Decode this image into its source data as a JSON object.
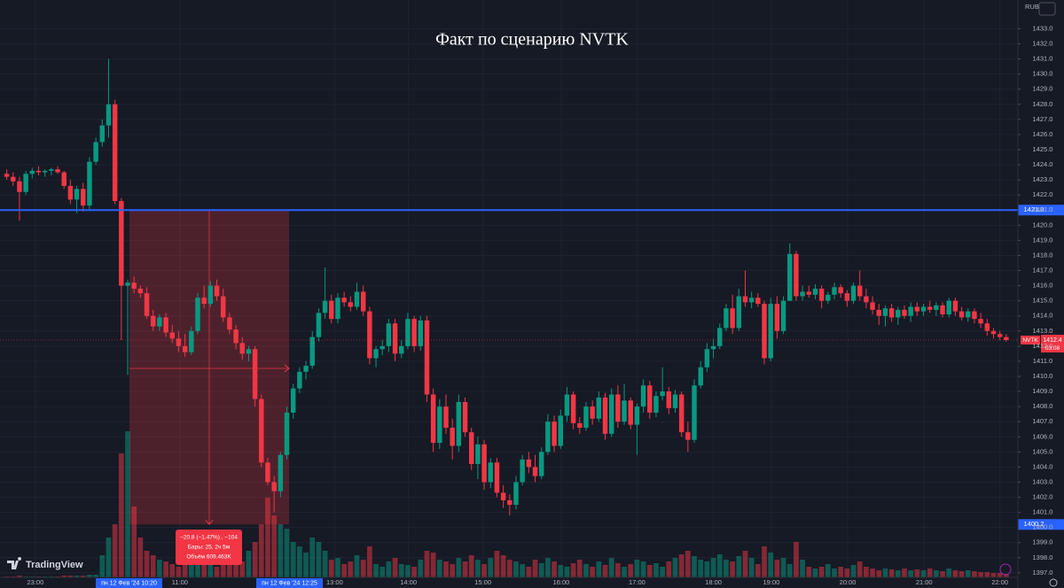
{
  "chart_data": {
    "type": "candlestick",
    "title": "Факт по сценарию NVTK",
    "currency": "RUB",
    "watermark": "TradingView",
    "colors": {
      "up": "#089981",
      "down": "#f23645",
      "line": "#2962ff"
    },
    "grid": true,
    "ylim": [
      1396.7,
      1434.9
    ],
    "yticks": [
      {
        "value": 1397,
        "label": "1397.0"
      },
      {
        "value": 1398,
        "label": "1398.0"
      },
      {
        "value": 1399,
        "label": "1399.0"
      },
      {
        "value": 1400,
        "label": "1400.0"
      },
      {
        "value": 1401,
        "label": "1401.0"
      },
      {
        "value": 1402,
        "label": "1402.0"
      },
      {
        "value": 1403,
        "label": "1403.0"
      },
      {
        "value": 1404,
        "label": "1404.0"
      },
      {
        "value": 1405,
        "label": "1405.0"
      },
      {
        "value": 1406,
        "label": "1406.0"
      },
      {
        "value": 1407,
        "label": "1407.0"
      },
      {
        "value": 1408,
        "label": "1408.0"
      },
      {
        "value": 1409,
        "label": "1409.0"
      },
      {
        "value": 1410,
        "label": "1410.0"
      },
      {
        "value": 1411,
        "label": "1411.0"
      },
      {
        "value": 1412,
        "label": "1412.0"
      },
      {
        "value": 1413,
        "label": "1413.0"
      },
      {
        "value": 1414,
        "label": "1414.0"
      },
      {
        "value": 1415,
        "label": "1415.0"
      },
      {
        "value": 1416,
        "label": "1416.0"
      },
      {
        "value": 1417,
        "label": "1417.0"
      },
      {
        "value": 1418,
        "label": "1418.0"
      },
      {
        "value": 1419,
        "label": "1419.0"
      },
      {
        "value": 1420,
        "label": "1420.0"
      },
      {
        "value": 1421,
        "label": "1421.0"
      },
      {
        "value": 1422,
        "label": "1422.0"
      },
      {
        "value": 1423,
        "label": "1423.0"
      },
      {
        "value": 1424,
        "label": "1424.0"
      },
      {
        "value": 1425,
        "label": "1425.0"
      },
      {
        "value": 1426,
        "label": "1426.0"
      },
      {
        "value": 1427,
        "label": "1427.0"
      },
      {
        "value": 1428,
        "label": "1428.0"
      },
      {
        "value": 1429,
        "label": "1429.0"
      },
      {
        "value": 1430,
        "label": "1430.0"
      },
      {
        "value": 1431,
        "label": "1431.0"
      },
      {
        "value": 1432,
        "label": "1432.0"
      },
      {
        "value": 1433,
        "label": "1433.0"
      }
    ],
    "xticks": [
      {
        "value": 4.5,
        "label": "23:00"
      },
      {
        "value": 27.2,
        "label": "11:00"
      },
      {
        "value": 51.5,
        "label": "13:00"
      },
      {
        "value": 63.1,
        "label": "14:00"
      },
      {
        "value": 74.8,
        "label": "15:00"
      },
      {
        "value": 87.1,
        "label": "16:00"
      },
      {
        "value": 99,
        "label": "17:00"
      },
      {
        "value": 111,
        "label": "18:00"
      },
      {
        "value": 120.1,
        "label": "19:00"
      },
      {
        "value": 132.1,
        "label": "20:00"
      },
      {
        "value": 144.1,
        "label": "21:00"
      },
      {
        "value": 156,
        "label": "22:00"
      }
    ],
    "ohlc": [
      [
        1423.4,
        1423.7,
        1423.0,
        1423.2
      ],
      [
        1423.2,
        1423.5,
        1422.6,
        1422.9
      ],
      [
        1422.9,
        1423.2,
        1420.3,
        1422.2
      ],
      [
        1422.2,
        1423.6,
        1422.0,
        1423.4
      ],
      [
        1423.4,
        1423.8,
        1423.1,
        1423.6
      ],
      [
        1423.6,
        1423.9,
        1423.3,
        1423.5
      ],
      [
        1423.5,
        1423.7,
        1423.2,
        1423.6
      ],
      [
        1423.6,
        1423.8,
        1423.3,
        1423.7
      ],
      [
        1423.7,
        1423.9,
        1423.4,
        1423.5
      ],
      [
        1423.5,
        1423.6,
        1422.4,
        1422.6
      ],
      [
        1422.6,
        1423.0,
        1421.4,
        1421.7
      ],
      [
        1421.7,
        1422.6,
        1420.8,
        1422.4
      ],
      [
        1422.4,
        1422.8,
        1420.9,
        1421.3
      ],
      [
        1421.3,
        1424.5,
        1421.0,
        1424.2
      ],
      [
        1424.2,
        1425.8,
        1424.0,
        1425.5
      ],
      [
        1425.5,
        1427.0,
        1425.2,
        1426.6
      ],
      [
        1426.6,
        1431.0,
        1425.8,
        1428.0
      ],
      [
        1428.0,
        1428.3,
        1421.4,
        1421.6
      ],
      [
        1421.6,
        1421.8,
        1412.4,
        1416.0
      ],
      [
        1416.0,
        1416.4,
        1410.1,
        1416.2
      ],
      [
        1416.2,
        1416.6,
        1415.5,
        1415.8
      ],
      [
        1415.8,
        1416.0,
        1415.2,
        1415.5
      ],
      [
        1415.5,
        1415.9,
        1413.8,
        1414.0
      ],
      [
        1414.0,
        1414.4,
        1413.0,
        1413.3
      ],
      [
        1413.3,
        1414.1,
        1413.0,
        1413.9
      ],
      [
        1413.9,
        1414.2,
        1412.6,
        1412.9
      ],
      [
        1412.9,
        1413.4,
        1412.2,
        1412.5
      ],
      [
        1412.5,
        1413.0,
        1411.6,
        1412.0
      ],
      [
        1412.0,
        1412.8,
        1411.3,
        1411.6
      ],
      [
        1411.6,
        1413.3,
        1411.4,
        1413.0
      ],
      [
        1413.0,
        1415.5,
        1412.8,
        1415.2
      ],
      [
        1415.2,
        1416.0,
        1414.5,
        1414.8
      ],
      [
        1414.8,
        1416.3,
        1414.6,
        1416.0
      ],
      [
        1416.0,
        1416.4,
        1415.0,
        1415.3
      ],
      [
        1415.3,
        1415.8,
        1413.6,
        1413.9
      ],
      [
        1413.9,
        1414.2,
        1412.8,
        1413.1
      ],
      [
        1413.1,
        1413.4,
        1411.8,
        1412.2
      ],
      [
        1412.2,
        1412.6,
        1411.1,
        1411.5
      ],
      [
        1411.5,
        1412.0,
        1411.0,
        1411.8
      ],
      [
        1411.8,
        1412.0,
        1408.0,
        1408.5
      ],
      [
        1408.5,
        1408.8,
        1404.0,
        1404.3
      ],
      [
        1404.3,
        1404.6,
        1402.8,
        1403.0
      ],
      [
        1403.0,
        1403.4,
        1401.0,
        1402.4
      ],
      [
        1402.4,
        1405.0,
        1402.0,
        1404.8
      ],
      [
        1404.8,
        1408.0,
        1404.5,
        1407.6
      ],
      [
        1407.6,
        1409.5,
        1407.2,
        1409.2
      ],
      [
        1409.2,
        1410.6,
        1408.9,
        1410.3
      ],
      [
        1410.3,
        1411.0,
        1409.8,
        1410.7
      ],
      [
        1410.7,
        1413.0,
        1410.5,
        1412.6
      ],
      [
        1412.6,
        1414.5,
        1412.3,
        1414.2
      ],
      [
        1414.2,
        1417.2,
        1413.8,
        1415.0
      ],
      [
        1415.0,
        1415.4,
        1413.5,
        1413.8
      ],
      [
        1413.8,
        1415.5,
        1413.5,
        1415.2
      ],
      [
        1415.2,
        1415.6,
        1414.6,
        1414.9
      ],
      [
        1414.9,
        1415.3,
        1414.3,
        1414.6
      ],
      [
        1414.6,
        1416.2,
        1414.4,
        1415.6
      ],
      [
        1415.6,
        1416.0,
        1414.0,
        1414.3
      ],
      [
        1414.3,
        1414.6,
        1410.8,
        1411.2
      ],
      [
        1411.2,
        1412.0,
        1410.6,
        1411.8
      ],
      [
        1411.8,
        1412.4,
        1411.4,
        1412.0
      ],
      [
        1412.0,
        1413.8,
        1411.6,
        1413.5
      ],
      [
        1413.5,
        1413.8,
        1411.0,
        1411.5
      ],
      [
        1411.5,
        1412.4,
        1411.2,
        1412.0
      ],
      [
        1412.0,
        1414.2,
        1411.8,
        1413.8
      ],
      [
        1413.8,
        1414.0,
        1411.6,
        1412.0
      ],
      [
        1412.0,
        1414.0,
        1411.7,
        1413.7
      ],
      [
        1413.7,
        1414.0,
        1408.3,
        1408.8
      ],
      [
        1408.8,
        1409.2,
        1405.0,
        1405.6
      ],
      [
        1405.6,
        1408.5,
        1405.2,
        1408.0
      ],
      [
        1408.0,
        1408.8,
        1406.2,
        1406.6
      ],
      [
        1406.6,
        1407.2,
        1404.5,
        1405.4
      ],
      [
        1405.4,
        1408.8,
        1405.0,
        1408.3
      ],
      [
        1408.3,
        1408.6,
        1406.0,
        1406.3
      ],
      [
        1406.3,
        1406.6,
        1403.8,
        1404.2
      ],
      [
        1404.2,
        1406.0,
        1403.2,
        1405.5
      ],
      [
        1405.5,
        1405.8,
        1402.5,
        1403.0
      ],
      [
        1403.0,
        1404.6,
        1402.6,
        1404.3
      ],
      [
        1404.3,
        1404.6,
        1402.0,
        1402.3
      ],
      [
        1402.3,
        1402.8,
        1401.3,
        1401.8
      ],
      [
        1401.8,
        1402.2,
        1400.8,
        1401.5
      ],
      [
        1401.5,
        1403.4,
        1401.2,
        1403.0
      ],
      [
        1403.0,
        1404.8,
        1402.8,
        1404.5
      ],
      [
        1404.5,
        1405.0,
        1403.6,
        1404.0
      ],
      [
        1404.0,
        1404.8,
        1403.0,
        1403.4
      ],
      [
        1403.4,
        1405.3,
        1403.2,
        1405.0
      ],
      [
        1405.0,
        1407.5,
        1404.8,
        1407.0
      ],
      [
        1407.0,
        1407.4,
        1405.0,
        1405.4
      ],
      [
        1405.4,
        1407.8,
        1405.2,
        1407.4
      ],
      [
        1407.4,
        1409.3,
        1407.0,
        1408.8
      ],
      [
        1408.8,
        1409.0,
        1406.5,
        1406.9
      ],
      [
        1406.9,
        1407.3,
        1406.2,
        1406.6
      ],
      [
        1406.6,
        1408.3,
        1406.4,
        1408.0
      ],
      [
        1408.0,
        1408.4,
        1406.8,
        1407.2
      ],
      [
        1407.2,
        1409.0,
        1407.0,
        1408.6
      ],
      [
        1408.6,
        1408.9,
        1405.8,
        1406.2
      ],
      [
        1406.2,
        1409.2,
        1406.0,
        1408.8
      ],
      [
        1408.8,
        1409.4,
        1406.6,
        1407.0
      ],
      [
        1407.0,
        1409.5,
        1406.8,
        1408.4
      ],
      [
        1408.4,
        1408.6,
        1406.5,
        1406.8
      ],
      [
        1406.8,
        1408.2,
        1404.8,
        1408.0
      ],
      [
        1408.0,
        1409.8,
        1407.6,
        1409.4
      ],
      [
        1409.4,
        1409.7,
        1407.2,
        1407.6
      ],
      [
        1407.6,
        1409.0,
        1407.3,
        1408.7
      ],
      [
        1408.7,
        1410.6,
        1408.4,
        1409.0
      ],
      [
        1409.0,
        1409.3,
        1407.5,
        1407.9
      ],
      [
        1407.9,
        1409.1,
        1407.6,
        1408.8
      ],
      [
        1408.8,
        1409.0,
        1406.0,
        1406.3
      ],
      [
        1406.3,
        1407.0,
        1405.0,
        1405.8
      ],
      [
        1405.8,
        1409.8,
        1405.6,
        1409.4
      ],
      [
        1409.4,
        1411.0,
        1409.2,
        1410.6
      ],
      [
        1410.6,
        1412.2,
        1410.3,
        1411.8
      ],
      [
        1411.8,
        1412.5,
        1411.2,
        1412.0
      ],
      [
        1412.0,
        1413.5,
        1411.8,
        1413.2
      ],
      [
        1413.2,
        1414.8,
        1413.0,
        1414.5
      ],
      [
        1414.5,
        1415.4,
        1412.8,
        1413.2
      ],
      [
        1413.2,
        1415.8,
        1413.0,
        1415.3
      ],
      [
        1415.3,
        1417.0,
        1414.6,
        1414.9
      ],
      [
        1414.9,
        1415.6,
        1414.5,
        1415.2
      ],
      [
        1415.2,
        1415.5,
        1414.6,
        1414.8
      ],
      [
        1414.8,
        1415.0,
        1410.8,
        1411.2
      ],
      [
        1411.2,
        1415.2,
        1411.0,
        1414.8
      ],
      [
        1414.8,
        1415.3,
        1412.5,
        1413.0
      ],
      [
        1413.0,
        1415.3,
        1412.8,
        1415.0
      ],
      [
        1415.0,
        1418.8,
        1415.0,
        1418.1
      ],
      [
        1418.1,
        1418.3,
        1415.0,
        1415.3
      ],
      [
        1415.3,
        1416.0,
        1415.0,
        1415.6
      ],
      [
        1415.6,
        1416.0,
        1415.2,
        1415.4
      ],
      [
        1415.4,
        1416.1,
        1415.1,
        1415.8
      ],
      [
        1415.8,
        1416.0,
        1414.5,
        1415.0
      ],
      [
        1415.0,
        1415.6,
        1414.8,
        1415.4
      ],
      [
        1415.4,
        1416.2,
        1415.1,
        1415.9
      ],
      [
        1415.9,
        1416.1,
        1415.2,
        1415.5
      ],
      [
        1415.5,
        1415.7,
        1414.6,
        1415.0
      ],
      [
        1415.0,
        1416.2,
        1414.8,
        1416.0
      ],
      [
        1416.0,
        1417.0,
        1415.0,
        1415.3
      ],
      [
        1415.3,
        1415.8,
        1414.5,
        1414.9
      ],
      [
        1414.9,
        1415.3,
        1414.1,
        1414.4
      ],
      [
        1414.4,
        1414.8,
        1413.4,
        1414.0
      ],
      [
        1414.0,
        1414.7,
        1413.3,
        1414.5
      ],
      [
        1414.5,
        1414.8,
        1413.6,
        1413.9
      ],
      [
        1413.9,
        1414.6,
        1413.4,
        1414.4
      ],
      [
        1414.4,
        1414.7,
        1413.8,
        1414.0
      ],
      [
        1414.0,
        1414.9,
        1413.6,
        1414.6
      ],
      [
        1414.6,
        1414.9,
        1414.0,
        1414.3
      ],
      [
        1414.3,
        1414.8,
        1414.0,
        1414.6
      ],
      [
        1414.6,
        1415.0,
        1414.2,
        1414.4
      ],
      [
        1414.4,
        1414.9,
        1414.0,
        1414.7
      ],
      [
        1414.7,
        1414.9,
        1413.9,
        1414.1
      ],
      [
        1414.1,
        1415.2,
        1413.9,
        1415.0
      ],
      [
        1415.0,
        1415.2,
        1414.0,
        1414.3
      ],
      [
        1414.3,
        1414.6,
        1413.7,
        1413.9
      ],
      [
        1413.9,
        1414.5,
        1413.6,
        1414.3
      ],
      [
        1414.3,
        1414.5,
        1413.5,
        1413.8
      ],
      [
        1413.8,
        1414.2,
        1413.2,
        1413.5
      ],
      [
        1413.5,
        1413.8,
        1412.7,
        1413.0
      ],
      [
        1413.0,
        1413.2,
        1412.5,
        1412.8
      ],
      [
        1412.8,
        1413.0,
        1412.4,
        1412.6
      ],
      [
        1412.6,
        1412.8,
        1412.3,
        1412.4
      ]
    ],
    "volume": [
      1,
      1,
      2,
      1,
      1,
      1,
      1,
      1,
      1,
      2,
      2,
      2,
      2,
      3,
      3,
      25,
      45,
      60,
      140,
      165,
      80,
      45,
      30,
      25,
      20,
      18,
      15,
      12,
      20,
      25,
      22,
      18,
      15,
      12,
      14,
      20,
      25,
      18,
      30,
      40,
      60,
      90,
      70,
      60,
      55,
      40,
      35,
      28,
      45,
      40,
      30,
      20,
      22,
      15,
      18,
      25,
      20,
      35,
      15,
      12,
      18,
      22,
      15,
      14,
      12,
      20,
      30,
      28,
      20,
      18,
      15,
      22,
      18,
      25,
      20,
      15,
      22,
      30,
      25,
      20,
      18,
      15,
      12,
      20,
      16,
      22,
      18,
      14,
      12,
      16,
      20,
      15,
      12,
      18,
      14,
      22,
      16,
      12,
      15,
      20,
      18,
      14,
      16,
      12,
      18,
      22,
      26,
      30,
      24,
      20,
      18,
      22,
      26,
      20,
      18,
      24,
      30,
      22,
      15,
      35,
      28,
      20,
      22,
      15,
      40,
      20,
      12,
      10,
      12,
      15,
      10,
      12,
      10,
      14,
      18,
      12,
      10,
      8,
      10,
      9,
      8,
      10,
      8,
      9,
      8,
      10,
      8,
      7,
      10,
      8,
      7,
      8,
      7,
      6,
      6,
      5,
      5,
      4
    ],
    "hline": {
      "value": 1421.0,
      "label": "1421.0"
    },
    "last": {
      "symbol": "NVTK",
      "value": 1412.4,
      "label": "1412.4",
      "timer": "03:08"
    },
    "measure": {
      "from": 1421.0,
      "to": 1400.2,
      "to_label": "1400.2",
      "start_date": "пн 12 Фев '24   10:20",
      "end_date": "пн 12 Фев '24   12:25",
      "lines": [
        "−20.8 (−1.47%) , −104",
        "Бары: 25, 2ч 5м",
        "Объём 609.463K"
      ]
    }
  }
}
